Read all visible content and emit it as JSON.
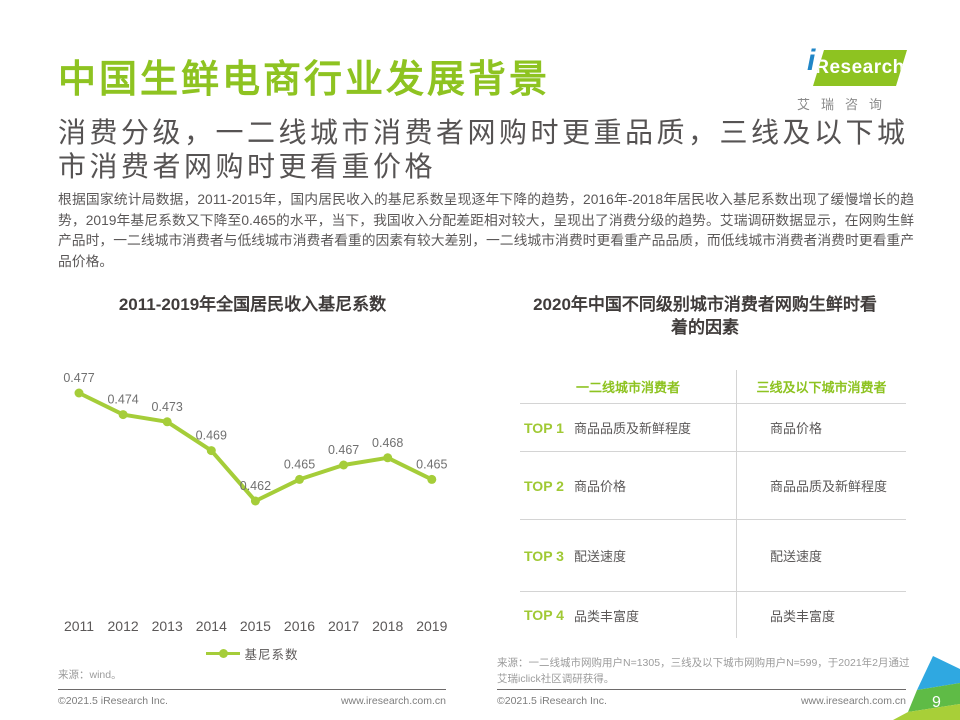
{
  "page": {
    "title": "中国生鲜电商行业发展背景",
    "subtitle": "消费分级，一二线城市消费者网购时更重品质，三线及以下城市消费者网购时更看重价格",
    "body": "根据国家统计局数据，2011-2015年，国内居民收入的基尼系数呈现逐年下降的趋势，2016年-2018年居民收入基尼系数出现了缓慢增长的趋势，2019年基尼系数又下降至0.465的水平，当下，我国收入分配差距相对较大，呈现出了消费分级的趋势。艾瑞调研数据显示，在网购生鲜产品时，一二线城市消费者与低线城市消费者看重的因素有较大差别，一二线城市消费时更看重产品品质，而低线城市消费者消费时更看重产品价格。",
    "page_number": "9"
  },
  "logo": {
    "brand_i": "i",
    "brand": "Research",
    "subtext": "艾瑞咨询"
  },
  "chart_data": {
    "type": "line",
    "title": "2011-2019年全国居民收入基尼系数",
    "categories": [
      "2011",
      "2012",
      "2013",
      "2014",
      "2015",
      "2016",
      "2017",
      "2018",
      "2019"
    ],
    "series": [
      {
        "name": "基尼系数",
        "values": [
          0.477,
          0.474,
          0.473,
          0.469,
          0.462,
          0.465,
          0.467,
          0.468,
          0.465
        ]
      }
    ],
    "ylim": [
      0.46,
      0.48
    ],
    "grid": false,
    "legend_position": "bottom",
    "line_color": "#a5cd39"
  },
  "left_panel": {
    "source": "来源：wind。"
  },
  "right_panel": {
    "title": "2020年中国不同级别城市消费者网购生鲜时看着的因素",
    "table": {
      "headers": [
        "一二线城市消费者",
        "三线及以下城市消费者"
      ],
      "rows": [
        {
          "rank": "TOP 1",
          "tier12": "商品品质及新鲜程度",
          "tier3plus": "商品价格"
        },
        {
          "rank": "TOP 2",
          "tier12": "商品价格",
          "tier3plus": "商品品质及新鲜程度"
        },
        {
          "rank": "TOP 3",
          "tier12": "配送速度",
          "tier3plus": "配送速度"
        },
        {
          "rank": "TOP 4",
          "tier12": "品类丰富度",
          "tier3plus": "品类丰富度"
        }
      ]
    },
    "source": "来源：一二线城市网购用户N=1305，三线及以下城市网购用户N=599，于2021年2月通过艾瑞iclick社区调研获得。"
  },
  "footer": {
    "left_copyright": "©2021.5 iResearch Inc.",
    "left_url": "www.iresearch.com.cn",
    "right_copyright": "©2021.5 iResearch Inc.",
    "right_url": "www.iresearch.com.cn"
  },
  "colors": {
    "accent_green": "#8ec321",
    "lime_green": "#a0c934",
    "line_green": "#a5cd39",
    "corner_blue": "#2fa8e1",
    "corner_green": "#5fbb46",
    "corner_lime": "#a8cf38",
    "text_dark": "#595757"
  }
}
